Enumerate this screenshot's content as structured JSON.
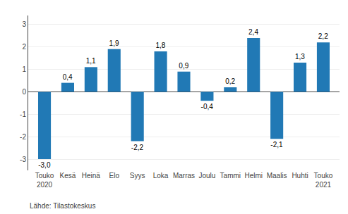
{
  "chart_data": {
    "type": "bar",
    "categories": [
      "Touko\n2020",
      "Kesä",
      "Heinä",
      "Elo",
      "Syys",
      "Loka",
      "Marras",
      "Joulu",
      "Tammi",
      "Helmi",
      "Maalis",
      "Huhti",
      "Touko\n2021"
    ],
    "values": [
      -3.0,
      0.4,
      1.1,
      1.9,
      -2.2,
      1.8,
      0.9,
      -0.4,
      0.2,
      2.4,
      -2.1,
      1.3,
      2.2
    ],
    "value_labels": [
      "-3,0",
      "0,4",
      "1,1",
      "1,9",
      "-2,2",
      "1,8",
      "0,9",
      "-0,4",
      "0,2",
      "2,4",
      "-2,1",
      "1,3",
      "2,2"
    ],
    "data_labels": true,
    "color": "#2179b5",
    "ylim": [
      -3.5,
      3.4
    ],
    "yticks": [
      -3,
      -2,
      -1,
      0,
      1,
      2,
      3
    ],
    "grid": true,
    "annotations": [
      "Lähde: Tilastokeskus"
    ]
  }
}
